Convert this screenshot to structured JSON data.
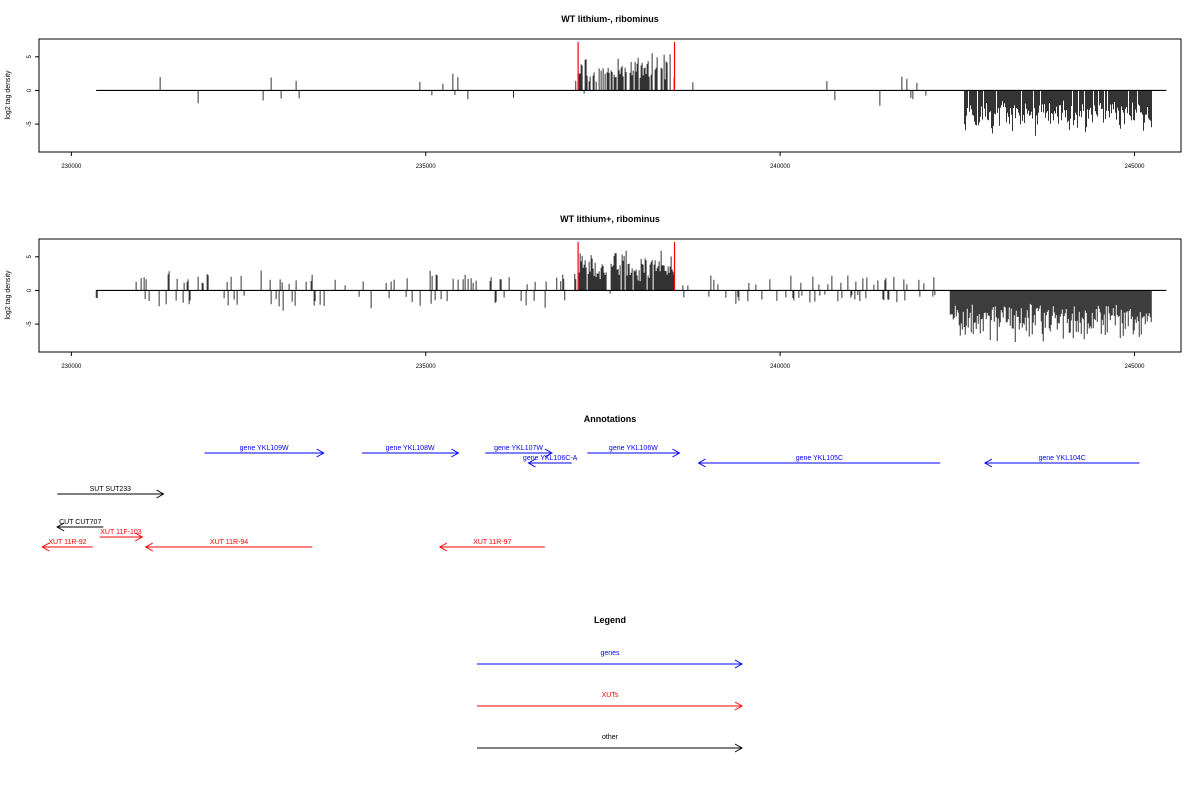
{
  "chart_data": [
    {
      "type": "bar",
      "title": "WT lithium-, ribominus",
      "ylabel": "log2 tag density",
      "xlim": [
        229600,
        245600
      ],
      "ylim": [
        -9,
        7.5
      ],
      "xticks": [
        230000,
        235000,
        240000,
        245000
      ],
      "yticks": [
        -5,
        0,
        5
      ],
      "grid": false,
      "markers": [
        237150,
        238510
      ],
      "segments": [
        {
          "from": 230900,
          "to": 233800,
          "dens": 0.045,
          "pos": 0.7,
          "ampPos": 3.0,
          "ampNeg": 3.0
        },
        {
          "from": 234100,
          "to": 235700,
          "dens": 0.03,
          "pos": 0.8,
          "ampPos": 3.5,
          "ampNeg": 2.0
        },
        {
          "from": 236000,
          "to": 236800,
          "dens": 0.02,
          "pos": 0.3,
          "ampPos": 2.0,
          "ampNeg": 4.0
        },
        {
          "from": 236850,
          "to": 237150,
          "dens": 0.15,
          "pos": 0.85,
          "ampPos": 3.0,
          "ampNeg": 1.0
        },
        {
          "from": 237150,
          "to": 238510,
          "dens": 0.7,
          "pos": 0.97,
          "ampPos": 6.0,
          "ampNeg": 1.0
        },
        {
          "from": 238600,
          "to": 242100,
          "dens": 0.025,
          "pos": 0.4,
          "ampPos": 3.0,
          "ampNeg": 2.5
        },
        {
          "from": 242600,
          "to": 245250,
          "dens": 0.9,
          "pos": 0.0,
          "ampPos": 1.0,
          "ampNeg": 7.0
        }
      ]
    },
    {
      "type": "bar",
      "title": "WT lithium+, ribominus",
      "ylabel": "log2 tag density",
      "xlim": [
        229600,
        245600
      ],
      "ylim": [
        -9,
        7.5
      ],
      "xticks": [
        230000,
        235000,
        240000,
        245000
      ],
      "yticks": [
        -5,
        0,
        5
      ],
      "grid": false,
      "markers": [
        237150,
        238510
      ],
      "segments": [
        {
          "from": 230350,
          "to": 230450,
          "dens": 0.2,
          "pos": 0.0,
          "ampPos": 1.0,
          "ampNeg": 3.0
        },
        {
          "from": 230900,
          "to": 236700,
          "dens": 0.22,
          "pos": 0.55,
          "ampPos": 3.2,
          "ampNeg": 3.5
        },
        {
          "from": 236850,
          "to": 237150,
          "dens": 0.3,
          "pos": 0.8,
          "ampPos": 3.5,
          "ampNeg": 2.0
        },
        {
          "from": 237150,
          "to": 238510,
          "dens": 0.95,
          "pos": 0.97,
          "ampPos": 6.5,
          "ampNeg": 1.0
        },
        {
          "from": 238600,
          "to": 242200,
          "dens": 0.18,
          "pos": 0.45,
          "ampPos": 2.5,
          "ampNeg": 2.5
        },
        {
          "from": 242400,
          "to": 245250,
          "dens": 1.0,
          "pos": 0.0,
          "ampPos": 2.5,
          "ampNeg": 8.0
        }
      ]
    }
  ],
  "annotations": {
    "title": "Annotations",
    "xlim": [
      229600,
      245600
    ],
    "items": [
      {
        "label": "gene YKL109W",
        "from": 231880,
        "to": 233560,
        "dir": "right",
        "row": 0,
        "color": "#0000ff"
      },
      {
        "label": "gene YKL108W",
        "from": 234100,
        "to": 235460,
        "dir": "right",
        "row": 0,
        "color": "#0000ff"
      },
      {
        "label": "gene YKL107W",
        "from": 235840,
        "to": 236780,
        "dir": "right",
        "row": 0,
        "color": "#0000ff"
      },
      {
        "label": "gene YKL106W",
        "from": 237280,
        "to": 238580,
        "dir": "right",
        "row": 0,
        "color": "#0000ff"
      },
      {
        "label": "gene YKL106C-A",
        "from": 236450,
        "to": 237060,
        "dir": "left",
        "row": 1,
        "color": "#0000ff"
      },
      {
        "label": "gene YKL105C",
        "from": 238850,
        "to": 242260,
        "dir": "left",
        "row": 1,
        "color": "#0000ff"
      },
      {
        "label": "gene YKL104C",
        "from": 242890,
        "to": 245070,
        "dir": "left",
        "row": 1,
        "color": "#0000ff"
      },
      {
        "label": "SUT SUT233",
        "from": 229800,
        "to": 231300,
        "dir": "right",
        "row": 2,
        "color": "#000000"
      },
      {
        "label": "CUT CUT707",
        "from": 229800,
        "to": 230450,
        "dir": "left",
        "row": 3,
        "color": "#000000"
      },
      {
        "label": "XUT 11F-103",
        "from": 230400,
        "to": 231000,
        "dir": "right",
        "row": 4,
        "color": "#ff0000"
      },
      {
        "label": "XUT 11R-92",
        "from": 229590,
        "to": 230300,
        "dir": "left",
        "row": 5,
        "color": "#ff0000"
      },
      {
        "label": "XUT 11R-94",
        "from": 231050,
        "to": 233400,
        "dir": "left",
        "row": 5,
        "color": "#ff0000"
      },
      {
        "label": "XUT 11R-97",
        "from": 235200,
        "to": 236680,
        "dir": "left",
        "row": 5,
        "color": "#ff0000"
      }
    ]
  },
  "legend": {
    "title": "Legend",
    "items": [
      {
        "label": "genes",
        "color": "#0000ff"
      },
      {
        "label": "XUTs",
        "color": "#ff0000"
      },
      {
        "label": "other",
        "color": "#000000"
      }
    ]
  }
}
